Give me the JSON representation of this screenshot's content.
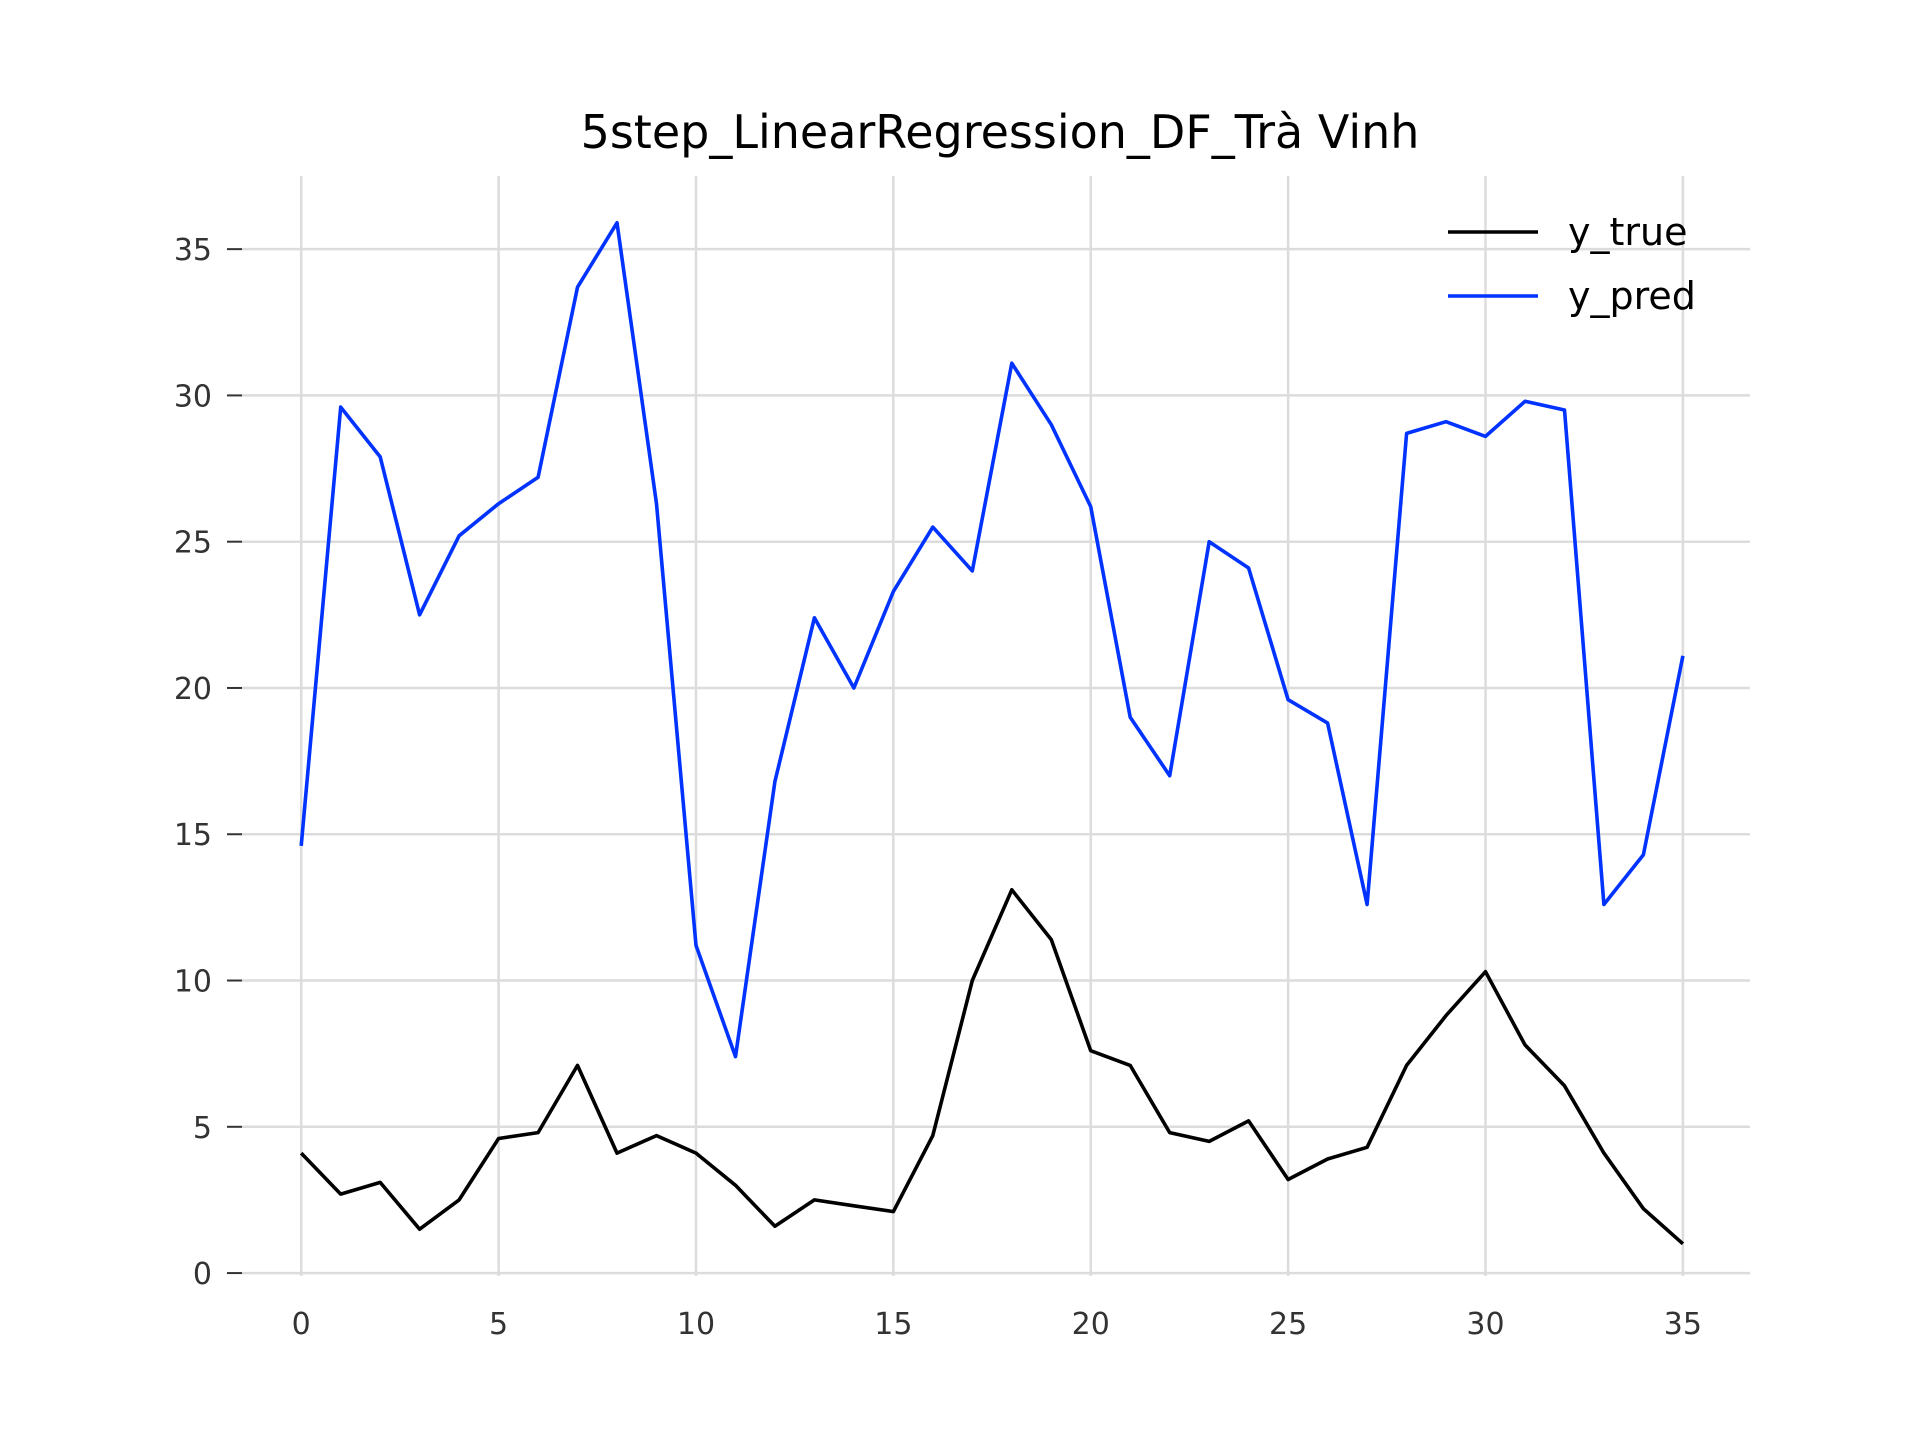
{
  "chart_data": {
    "type": "line",
    "title": "5step_LinearRegression_DF_Trà Vinh",
    "xlabel": "",
    "ylabel": "",
    "x": [
      0,
      1,
      2,
      3,
      4,
      5,
      6,
      7,
      8,
      9,
      10,
      11,
      12,
      13,
      14,
      15,
      16,
      17,
      18,
      19,
      20,
      21,
      22,
      23,
      24,
      25,
      26,
      27,
      28,
      29,
      30,
      31,
      32,
      33,
      34,
      35
    ],
    "xlim": [
      -1.5,
      36.7
    ],
    "ylim": [
      -0.1,
      37.5
    ],
    "xticks": [
      0,
      5,
      10,
      15,
      20,
      25,
      30,
      35
    ],
    "xtick_labels": [
      "0",
      "5",
      "10",
      "15",
      "20",
      "25",
      "30",
      "35"
    ],
    "yticks": [
      0,
      5,
      10,
      15,
      20,
      25,
      30,
      35
    ],
    "ytick_labels": [
      "0",
      "5",
      "10",
      "15",
      "20",
      "25",
      "30",
      "35"
    ],
    "grid": true,
    "legend_position": "top-right",
    "series": [
      {
        "name": "y_true",
        "color": "#000000",
        "values": [
          4.1,
          2.7,
          3.1,
          1.5,
          2.5,
          4.6,
          4.8,
          7.1,
          4.1,
          4.7,
          4.1,
          3.0,
          1.6,
          2.5,
          2.3,
          2.1,
          4.7,
          10.0,
          13.1,
          11.4,
          7.6,
          7.1,
          4.8,
          4.5,
          5.2,
          3.2,
          3.9,
          4.3,
          7.1,
          8.8,
          10.3,
          7.8,
          6.4,
          4.1,
          2.2,
          1.0
        ]
      },
      {
        "name": "y_pred",
        "color": "#0033ff",
        "values": [
          14.6,
          29.6,
          27.9,
          22.5,
          25.2,
          26.3,
          27.2,
          33.7,
          35.9,
          26.3,
          11.2,
          7.4,
          16.8,
          22.4,
          20.0,
          23.3,
          25.5,
          24.0,
          31.1,
          29.0,
          26.2,
          19.0,
          17.0,
          25.0,
          24.1,
          19.6,
          18.8,
          12.6,
          28.7,
          29.1,
          28.6,
          29.8,
          29.5,
          12.6,
          14.3,
          21.1
        ]
      }
    ]
  }
}
